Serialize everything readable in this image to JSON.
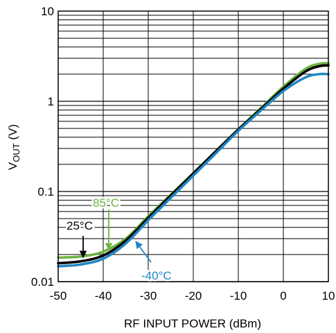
{
  "chart_data": {
    "type": "line",
    "title": "",
    "xlabel": "RF INPUT POWER (dBm)",
    "ylabel": {
      "main": "V",
      "subscript": "OUT",
      "suffix": " (V)"
    },
    "xlim": [
      -50,
      10
    ],
    "ylim": [
      0.01,
      10
    ],
    "yscale": "log",
    "grid": true,
    "x_ticks": [
      -50,
      -40,
      -30,
      -20,
      -10,
      0,
      10
    ],
    "x_tick_labels": [
      "-50",
      "-40",
      "-30",
      "-20",
      "-10",
      "0",
      "10"
    ],
    "y_ticks": [
      0.01,
      0.1,
      1,
      10
    ],
    "y_tick_labels": [
      "0.01",
      "0.1",
      "1",
      "10"
    ],
    "series": [
      {
        "name": "85°C",
        "color": "#6db33f",
        "x": [
          -50,
          -45,
          -40,
          -35,
          -30,
          -25,
          -20,
          -15,
          -10,
          -5,
          0,
          5,
          8,
          10
        ],
        "y": [
          0.0185,
          0.019,
          0.0215,
          0.03,
          0.053,
          0.092,
          0.16,
          0.28,
          0.49,
          0.84,
          1.45,
          2.3,
          2.6,
          2.65
        ]
      },
      {
        "name": "25°C",
        "color": "#000000",
        "x": [
          -50,
          -45,
          -40,
          -35,
          -30,
          -25,
          -20,
          -15,
          -10,
          -5,
          0,
          5,
          8,
          10
        ],
        "y": [
          0.016,
          0.0168,
          0.0195,
          0.0285,
          0.051,
          0.09,
          0.158,
          0.278,
          0.485,
          0.82,
          1.38,
          2.15,
          2.45,
          2.5
        ]
      },
      {
        "name": "-40°C",
        "color": "#1f86c4",
        "x": [
          -50,
          -45,
          -40,
          -35,
          -30,
          -25,
          -20,
          -15,
          -10,
          -5,
          0,
          5,
          8,
          10
        ],
        "y": [
          0.0148,
          0.0155,
          0.018,
          0.0265,
          0.048,
          0.085,
          0.15,
          0.265,
          0.47,
          0.79,
          1.3,
          1.85,
          2.0,
          2.0
        ]
      }
    ],
    "annotations": [
      {
        "text": "85°C",
        "color": "#6db33f",
        "series": "85°C"
      },
      {
        "text": "25°C",
        "color": "#000000",
        "series": "25°C"
      },
      {
        "text": "-40°C",
        "color": "#1f86c4",
        "series": "-40°C"
      }
    ]
  }
}
